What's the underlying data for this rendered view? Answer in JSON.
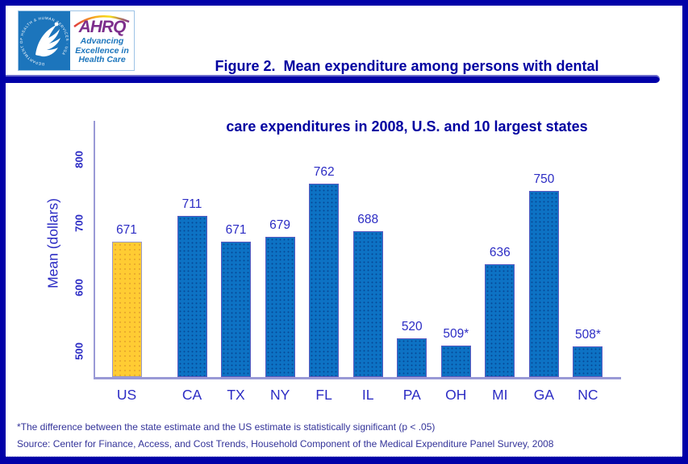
{
  "header": {
    "title_line1": "Figure 2.  Mean expenditure among persons with dental",
    "title_line2": "care expenditures in 2008, U.S. and 10 largest states"
  },
  "logo": {
    "hhs_circle_text": "DEPARTMENT OF HEALTH & HUMAN SERVICES · USA",
    "ahrq": "AHRQ",
    "tagline_line1": "Advancing",
    "tagline_line2": "Excellence in",
    "tagline_line3": "Health Care"
  },
  "chart_data": {
    "type": "bar",
    "title": "Mean expenditure among persons with dental care expenditures in 2008, U.S. and 10 largest states",
    "categories": [
      "US",
      "CA",
      "TX",
      "NY",
      "FL",
      "IL",
      "PA",
      "OH",
      "MI",
      "GA",
      "NC"
    ],
    "values": [
      671,
      711,
      671,
      679,
      762,
      688,
      520,
      509,
      636,
      750,
      508
    ],
    "value_labels": [
      "671",
      "711",
      "671",
      "679",
      "762",
      "688",
      "520",
      "509*",
      "636",
      "750",
      "508*"
    ],
    "xlabel": "",
    "ylabel": "Mean (dollars)",
    "ylim": [
      460,
      860
    ],
    "yticks": [
      500,
      600,
      700,
      800
    ],
    "highlight_index": 0,
    "grid": false,
    "legend": false,
    "colors": {
      "bar": "#0D72C4",
      "highlight_bar": "#FFCC33",
      "bar_border": "#5A5AC0",
      "axis": "#9999D6",
      "label_text": "#2C2CC4"
    }
  },
  "footnotes": {
    "line1": "*The difference between the state estimate and the US estimate is statistically significant (p < .05)",
    "line2": "Source: Center for Finance, Access, and Cost Trends, Household Component of the Medical Expenditure Panel Survey, 2008"
  },
  "colors": {
    "frame": "#0101A8",
    "title_text": "#0000A0",
    "footnote_text": "#333399",
    "hhs_blue": "#1C75BC",
    "ahrq_purple": "#7D2E8C"
  }
}
